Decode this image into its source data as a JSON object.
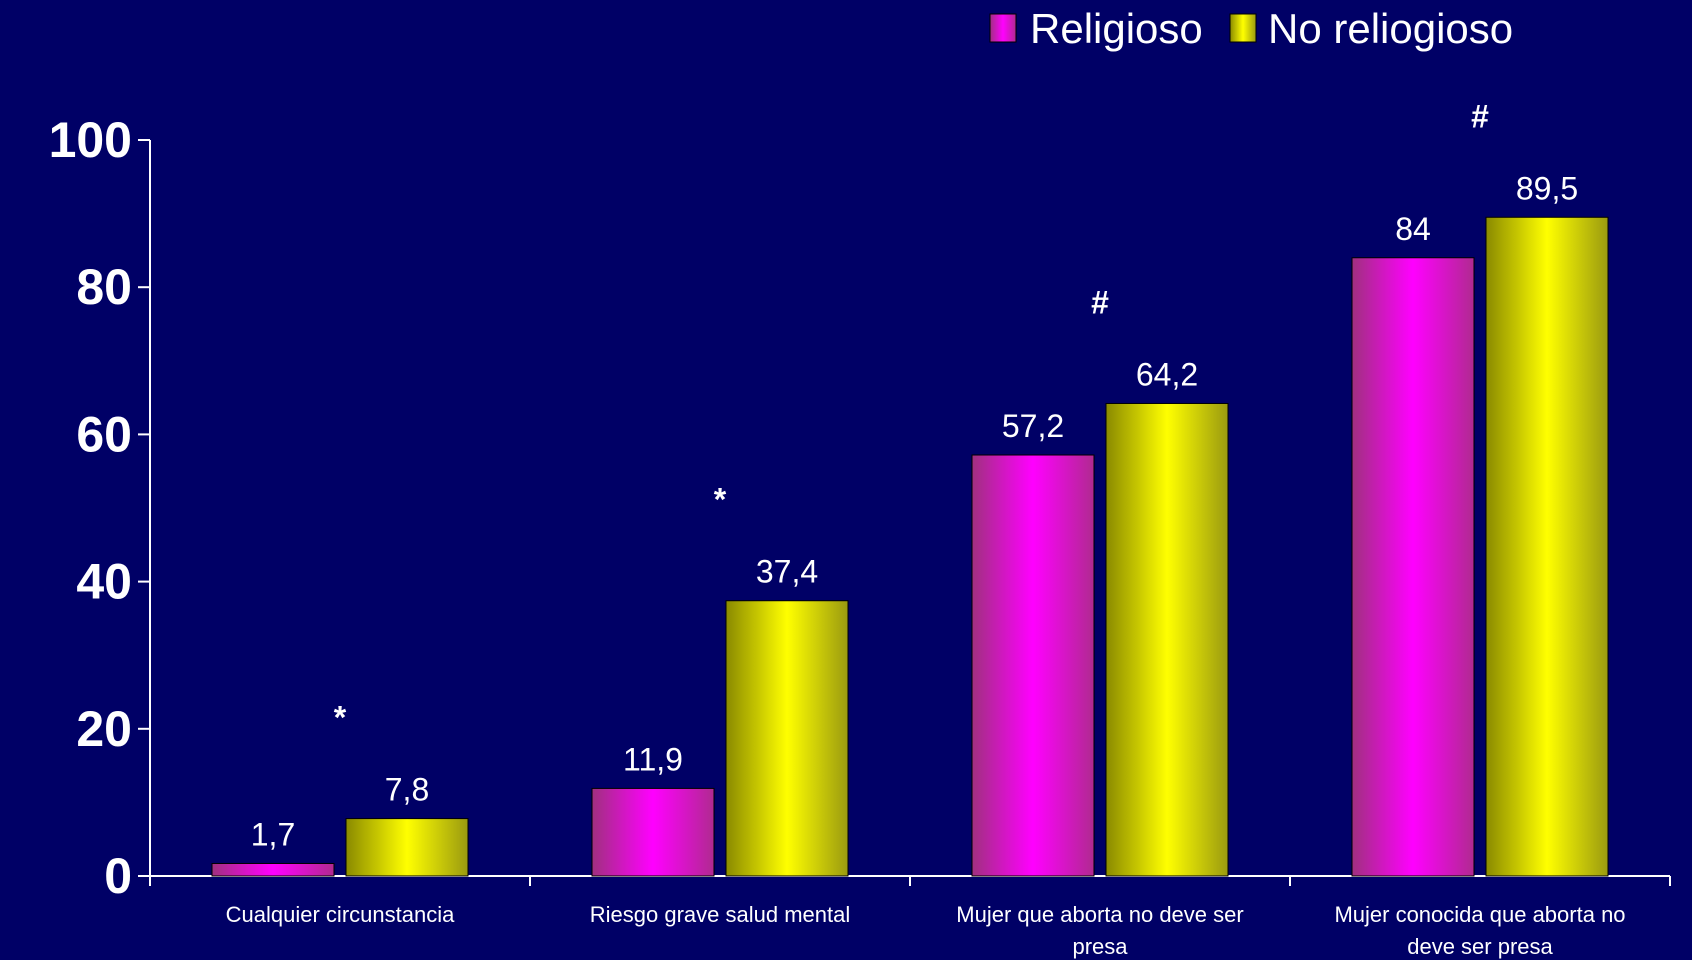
{
  "chart_data": {
    "type": "bar",
    "categories": [
      "Cualquier circunstancia",
      "Riesgo grave salud mental",
      "Mujer que aborta no deve ser presa",
      "Mujer conocida que aborta no deve ser presa"
    ],
    "series": [
      {
        "name": "Religioso",
        "values": [
          1.7,
          11.9,
          57.2,
          84
        ],
        "labels": [
          "1,7",
          "11,9",
          "57,2",
          "84"
        ],
        "color": "#ff00ff"
      },
      {
        "name": "No reliogioso",
        "values": [
          7.8,
          37.4,
          64.2,
          89.5
        ],
        "labels": [
          "7,8",
          "37,4",
          "64,2",
          "89,5"
        ],
        "color": "#ffff00"
      }
    ],
    "significance_marks": [
      "*",
      "*",
      "#",
      "#"
    ],
    "yticks": [
      0,
      20,
      40,
      60,
      80,
      100
    ],
    "ylim": [
      0,
      100
    ],
    "title": "",
    "xlabel": "",
    "ylabel": "",
    "legend_position": "top-right",
    "grid": false
  },
  "colors": {
    "background": "#000066",
    "axis": "#ffffff",
    "text": "#ffffff"
  }
}
